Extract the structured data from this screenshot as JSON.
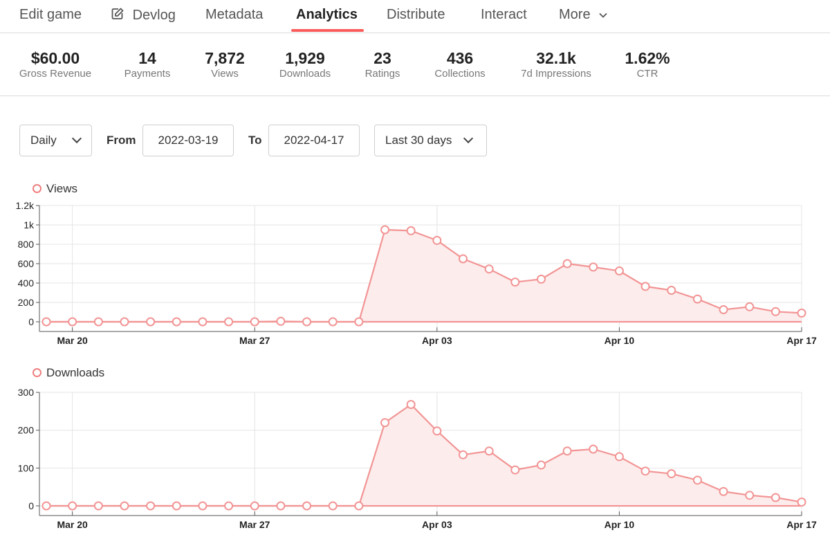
{
  "nav": {
    "items": [
      {
        "label": "Edit game",
        "name": "tab-edit-game"
      },
      {
        "label": "Devlog",
        "name": "tab-devlog",
        "icon": "edit-icon"
      },
      {
        "label": "Metadata",
        "name": "tab-metadata"
      },
      {
        "label": "Analytics",
        "name": "tab-analytics",
        "active": true
      },
      {
        "label": "Distribute",
        "name": "tab-distribute"
      },
      {
        "label": "Interact",
        "name": "tab-interact"
      },
      {
        "label": "More",
        "name": "tab-more",
        "icon": "chevron-down-icon"
      }
    ]
  },
  "stats": [
    {
      "value": "$60.00",
      "label": "Gross Revenue"
    },
    {
      "value": "14",
      "label": "Payments"
    },
    {
      "value": "7,872",
      "label": "Views"
    },
    {
      "value": "1,929",
      "label": "Downloads"
    },
    {
      "value": "23",
      "label": "Ratings"
    },
    {
      "value": "436",
      "label": "Collections"
    },
    {
      "value": "32.1k",
      "label": "7d Impressions"
    },
    {
      "value": "1.62%",
      "label": "CTR"
    }
  ],
  "controls": {
    "interval": "Daily",
    "from_label": "From",
    "from_value": "2022-03-19",
    "to_label": "To",
    "to_value": "2022-04-17",
    "range": "Last 30 days"
  },
  "colors": {
    "accent": "#fa5c5c",
    "series_line": "#f29494",
    "series_fill": "#fdecec"
  },
  "chart_data": [
    {
      "type": "area",
      "title": "Views",
      "legend": [
        "Views"
      ],
      "x": [
        "2022-03-19",
        "2022-03-20",
        "2022-03-21",
        "2022-03-22",
        "2022-03-23",
        "2022-03-24",
        "2022-03-25",
        "2022-03-26",
        "2022-03-27",
        "2022-03-28",
        "2022-03-29",
        "2022-03-30",
        "2022-03-31",
        "2022-04-01",
        "2022-04-02",
        "2022-04-03",
        "2022-04-04",
        "2022-04-05",
        "2022-04-06",
        "2022-04-07",
        "2022-04-08",
        "2022-04-09",
        "2022-04-10",
        "2022-04-11",
        "2022-04-12",
        "2022-04-13",
        "2022-04-14",
        "2022-04-15",
        "2022-04-16",
        "2022-04-17"
      ],
      "values": [
        0,
        0,
        0,
        0,
        0,
        0,
        0,
        0,
        0,
        5,
        0,
        0,
        0,
        950,
        940,
        840,
        650,
        545,
        410,
        440,
        600,
        565,
        525,
        365,
        325,
        235,
        125,
        155,
        105,
        90
      ],
      "ylim": [
        0,
        1200
      ],
      "yticks": [
        0,
        200,
        400,
        600,
        800,
        1000,
        1200
      ],
      "ytick_labels": [
        "0",
        "200",
        "400",
        "600",
        "800",
        "1k",
        "1.2k"
      ],
      "xtick_labels": [
        "Mar 20",
        "Mar 27",
        "Apr 03",
        "Apr 10",
        "Apr 17"
      ],
      "xtick_index": [
        1,
        8,
        15,
        22,
        29
      ]
    },
    {
      "type": "area",
      "title": "Downloads",
      "legend": [
        "Downloads"
      ],
      "x": [
        "2022-03-19",
        "2022-03-20",
        "2022-03-21",
        "2022-03-22",
        "2022-03-23",
        "2022-03-24",
        "2022-03-25",
        "2022-03-26",
        "2022-03-27",
        "2022-03-28",
        "2022-03-29",
        "2022-03-30",
        "2022-03-31",
        "2022-04-01",
        "2022-04-02",
        "2022-04-03",
        "2022-04-04",
        "2022-04-05",
        "2022-04-06",
        "2022-04-07",
        "2022-04-08",
        "2022-04-09",
        "2022-04-10",
        "2022-04-11",
        "2022-04-12",
        "2022-04-13",
        "2022-04-14",
        "2022-04-15",
        "2022-04-16",
        "2022-04-17"
      ],
      "values": [
        0,
        0,
        0,
        0,
        0,
        0,
        0,
        0,
        0,
        0,
        0,
        0,
        0,
        220,
        268,
        198,
        135,
        145,
        95,
        108,
        145,
        150,
        130,
        92,
        85,
        68,
        38,
        28,
        22,
        10
      ],
      "ylim": [
        0,
        300
      ],
      "yticks": [
        0,
        100,
        200,
        300
      ],
      "ytick_labels": [
        "0",
        "100",
        "200",
        "300"
      ],
      "xtick_labels": [
        "Mar 20",
        "Mar 27",
        "Apr 03",
        "Apr 10",
        "Apr 17"
      ],
      "xtick_index": [
        1,
        8,
        15,
        22,
        29
      ]
    }
  ]
}
